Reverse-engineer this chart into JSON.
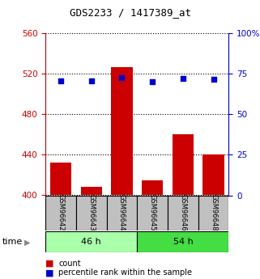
{
  "title": "GDS2233 / 1417389_at",
  "samples": [
    "GSM96642",
    "GSM96643",
    "GSM96644",
    "GSM96645",
    "GSM96646",
    "GSM96648"
  ],
  "counts": [
    432,
    408,
    527,
    415,
    460,
    440
  ],
  "percentiles": [
    70.5,
    70.5,
    72.5,
    70.0,
    72.0,
    71.5
  ],
  "ylim_left": [
    400,
    560
  ],
  "ylim_right": [
    0,
    100
  ],
  "yticks_left": [
    400,
    440,
    480,
    520,
    560
  ],
  "yticks_right": [
    0,
    25,
    50,
    75,
    100
  ],
  "bar_color": "#CC0000",
  "dot_color": "#0000CC",
  "bar_bottom": 400,
  "left_axis_color": "#CC0000",
  "right_axis_color": "#0000CC",
  "legend_count_label": "count",
  "legend_pct_label": "percentile rank within the sample",
  "bar_width": 0.7,
  "label_area_color": "#C0C0C0",
  "group46_color": "#AAFFAA",
  "group54_color": "#44DD44"
}
